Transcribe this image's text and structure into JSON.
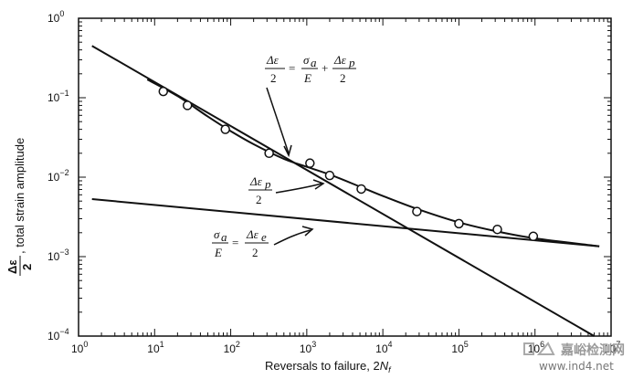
{
  "chart_data": {
    "type": "line",
    "x_scale": "log",
    "y_scale": "log",
    "xlim": [
      1,
      10000000
    ],
    "ylim": [
      0.0001,
      1
    ],
    "xlabel_main": "Reversals to failure, 2",
    "xlabel_var": "N",
    "xlabel_sub": "f",
    "ylabel_fraction_num": "Δε",
    "ylabel_fraction_den": "2",
    "ylabel_text": ", total strain amplitude",
    "x_ticks": [
      {
        "value": 1,
        "base": "10",
        "exp": "0"
      },
      {
        "value": 10,
        "base": "10",
        "exp": "1"
      },
      {
        "value": 100,
        "base": "10",
        "exp": "2"
      },
      {
        "value": 1000,
        "base": "10",
        "exp": "3"
      },
      {
        "value": 10000,
        "base": "10",
        "exp": "4"
      },
      {
        "value": 100000,
        "base": "10",
        "exp": "5"
      },
      {
        "value": 1000000,
        "base": "10",
        "exp": "6"
      },
      {
        "value": 10000000,
        "base": "10",
        "exp": "7"
      }
    ],
    "y_ticks": [
      {
        "value": 1,
        "base": "10",
        "exp": "0"
      },
      {
        "value": 0.1,
        "base": "10",
        "exp": "−1"
      },
      {
        "value": 0.01,
        "base": "10",
        "exp": "−2"
      },
      {
        "value": 0.001,
        "base": "10",
        "exp": "−3"
      },
      {
        "value": 0.0001,
        "base": "10",
        "exp": "−4"
      }
    ],
    "series": [
      {
        "key": "plastic",
        "x": [
          1.5,
          6000000
        ],
        "y": [
          0.45,
          0.0001
        ]
      },
      {
        "key": "elastic",
        "x": [
          1.5,
          7000000
        ],
        "y": [
          0.0053,
          0.00135
        ]
      },
      {
        "key": "total",
        "x": [
          8,
          20,
          50,
          100,
          200,
          500,
          1000,
          2000,
          5000,
          10000,
          30000,
          100000,
          300000,
          1000000,
          7000000
        ],
        "y": [
          0.17,
          0.105,
          0.058,
          0.038,
          0.026,
          0.017,
          0.0135,
          0.0108,
          0.0076,
          0.0058,
          0.0039,
          0.0027,
          0.0021,
          0.0017,
          0.00135
        ]
      }
    ],
    "points": [
      {
        "x": 13,
        "y": 0.12
      },
      {
        "x": 27,
        "y": 0.08
      },
      {
        "x": 85,
        "y": 0.04
      },
      {
        "x": 320,
        "y": 0.02
      },
      {
        "x": 1100,
        "y": 0.015
      },
      {
        "x": 2000,
        "y": 0.0105
      },
      {
        "x": 5200,
        "y": 0.0071
      },
      {
        "x": 28000,
        "y": 0.0037
      },
      {
        "x": 100000,
        "y": 0.0026
      },
      {
        "x": 320000,
        "y": 0.0022
      },
      {
        "x": 950000,
        "y": 0.0018
      }
    ],
    "grid": false,
    "annotations": {
      "total": {
        "lhs_num": "Δε",
        "lhs_den": "2",
        "eq": "=",
        "sigma_num": "σ",
        "sigma_sub": "a",
        "sigma_den": "E",
        "plus": "+",
        "rhs_num": "Δε",
        "rhs_sub": "p",
        "rhs_den": "2"
      },
      "plastic": {
        "num": "Δε",
        "sub": "p",
        "den": "2"
      },
      "elastic": {
        "sigma_num": "σ",
        "sigma_sub": "a",
        "sigma_den": "E",
        "eq": "=",
        "rhs_num": "Δε",
        "rhs_sub": "e",
        "rhs_den": "2"
      }
    }
  },
  "watermark": {
    "logo_text": "嘉峪检测网",
    "url": "www.ind4.net"
  }
}
